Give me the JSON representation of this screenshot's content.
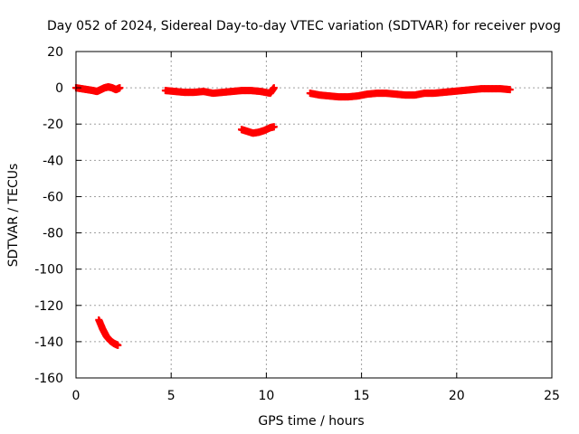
{
  "chart_data": {
    "type": "scatter",
    "title": "Day 052 of 2024, Sidereal Day-to-day VTEC variation (SDTVAR) for receiver pvog",
    "xlabel": "GPS time / hours",
    "ylabel": "SDTVAR / TECUs",
    "xlim": [
      0,
      25
    ],
    "ylim": [
      -160,
      20
    ],
    "xticks": [
      0,
      5,
      10,
      15,
      20,
      25
    ],
    "yticks": [
      20,
      0,
      -20,
      -40,
      -60,
      -80,
      -100,
      -120,
      -140,
      -160
    ],
    "grid": true,
    "legend": "none",
    "marker": "plus",
    "color": "#ff0000",
    "series": [
      {
        "x": [
          0.0,
          0.3,
          0.6,
          0.9,
          1.1,
          1.3,
          1.5,
          1.7,
          1.9,
          2.1,
          2.3
        ],
        "y": [
          0,
          -0.5,
          -1,
          -1.5,
          -2,
          -1,
          0,
          0.5,
          0,
          -1,
          0
        ]
      },
      {
        "x": [
          1.2,
          1.4,
          1.6,
          1.8,
          2.0,
          2.2
        ],
        "y": [
          -128,
          -133,
          -137,
          -139.5,
          -141,
          -142
        ]
      },
      {
        "x": [
          4.7,
          5.2,
          5.7,
          6.2,
          6.7,
          7.2,
          7.7,
          8.2,
          8.7,
          9.2,
          9.7,
          10.2,
          10.4
        ],
        "y": [
          -1.5,
          -2,
          -2.5,
          -2.5,
          -2,
          -3,
          -2.5,
          -2,
          -1.5,
          -1.5,
          -2,
          -3,
          0
        ]
      },
      {
        "x": [
          8.7,
          9.0,
          9.3,
          9.6,
          9.9,
          10.2,
          10.4
        ],
        "y": [
          -23,
          -24,
          -25,
          -24.5,
          -23.5,
          -22,
          -21.5
        ]
      },
      {
        "x": [
          12.3,
          12.8,
          13.3,
          13.8,
          14.3,
          14.8,
          15.3,
          15.8,
          16.3,
          16.8,
          17.3,
          17.8,
          18.3,
          18.8,
          19.3,
          19.8,
          20.3,
          20.8,
          21.3,
          21.8,
          22.3,
          22.8
        ],
        "y": [
          -3,
          -4,
          -4.5,
          -5,
          -5,
          -4.5,
          -3.5,
          -3,
          -3,
          -3.5,
          -4,
          -4,
          -3,
          -3,
          -2.5,
          -2,
          -1.5,
          -1,
          -0.5,
          -0.5,
          -0.5,
          -1
        ]
      }
    ]
  }
}
